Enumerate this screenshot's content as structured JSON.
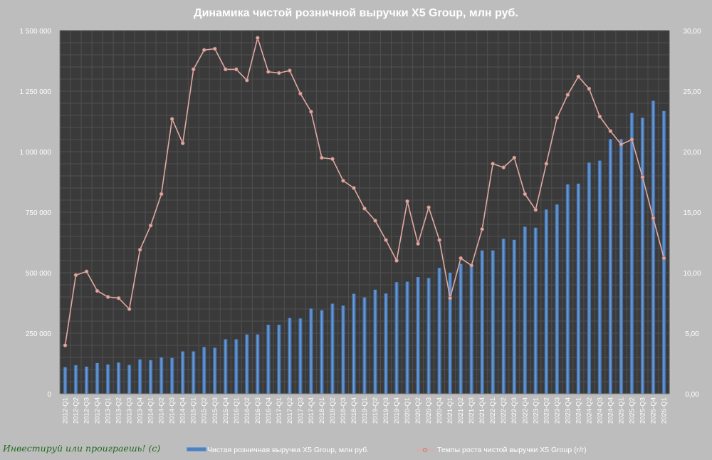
{
  "chart_data": {
    "type": "bar",
    "title": "Динамика чистой розничной выручки X5 Group, млн руб.",
    "categories": [
      "2012-Q1",
      "2012-Q2",
      "2012-Q3",
      "2012-Q4",
      "2013-Q1",
      "2013-Q2",
      "2013-Q3",
      "2013-Q4",
      "2014-Q1",
      "2014-Q2",
      "2014-Q3",
      "2014-Q4",
      "2015-Q1",
      "2015-Q2",
      "2015-Q3",
      "2015-Q4",
      "2016-Q1",
      "2016-Q2",
      "2016-Q3",
      "2016-Q4",
      "2017-Q1",
      "2017-Q2",
      "2017-Q3",
      "2017-Q4",
      "2018-Q1",
      "2018-Q2",
      "2018-Q3",
      "2018-Q4",
      "2019-Q1",
      "2019-Q2",
      "2019-Q3",
      "2019-Q4",
      "2020-Q1",
      "2020-Q2",
      "2020-Q3",
      "2020-Q4",
      "2021-Q1",
      "2021-Q2",
      "2021-Q3",
      "2021-Q4",
      "2022-Q1",
      "2022-Q2",
      "2022-Q3",
      "2022-Q4",
      "2023-Q1",
      "2023-Q2",
      "2023-Q3",
      "2023-Q4",
      "2024-Q1",
      "2024-Q2",
      "2024-Q3",
      "2024-Q4",
      "2025-Q1",
      "2025-Q2",
      "2025-Q3",
      "2025-Q4",
      "2026-Q1"
    ],
    "series": [
      {
        "name": "Чистая розничная выручка X5 Group, млн руб.",
        "type": "bar",
        "axis": "left",
        "color": "#4f81bd",
        "values": [
          110000,
          118000,
          112000,
          127000,
          121000,
          129000,
          119000,
          142000,
          139000,
          150000,
          148000,
          175000,
          175000,
          193000,
          190000,
          225000,
          225000,
          245000,
          245000,
          285000,
          285000,
          313000,
          311000,
          352000,
          345000,
          372000,
          364000,
          413000,
          398000,
          430000,
          414000,
          461000,
          463000,
          482000,
          478000,
          520000,
          500000,
          537000,
          531000,
          592000,
          592000,
          640000,
          636000,
          690000,
          686000,
          761000,
          782000,
          865000,
          868000,
          955000,
          963000,
          1052000,
          1052000,
          1160000,
          1140000,
          1210000,
          1168000
        ]
      },
      {
        "name": "Темпы роста чистой выручки X5 Group (г/г)",
        "type": "line",
        "axis": "right",
        "color": "#e0a9a3",
        "values": [
          4.0,
          9.8,
          10.1,
          8.5,
          8.0,
          7.9,
          7.0,
          11.9,
          13.9,
          16.5,
          22.7,
          20.7,
          26.8,
          28.4,
          28.5,
          26.8,
          26.8,
          25.9,
          29.4,
          26.6,
          26.5,
          26.7,
          24.8,
          23.3,
          19.5,
          19.4,
          17.6,
          17.0,
          15.3,
          14.3,
          12.7,
          11.0,
          15.9,
          12.4,
          15.4,
          12.7,
          7.9,
          11.2,
          10.6,
          13.6,
          19.0,
          18.7,
          19.5,
          16.5,
          15.2,
          19.0,
          22.8,
          24.7,
          26.2,
          25.2,
          22.9,
          21.7,
          20.6,
          21.0,
          17.9,
          14.5,
          11.2
        ]
      }
    ],
    "y_left": {
      "min": 0,
      "max": 1500000,
      "ticks": [
        "0",
        "250 000",
        "500 000",
        "750 000",
        "1 000 000",
        "1 250 000",
        "1 500 000"
      ]
    },
    "y_right": {
      "min": 0,
      "max": 30,
      "ticks": [
        "0,00",
        "5,00",
        "10,00",
        "15,00",
        "20,00",
        "25,00",
        "30,00"
      ]
    },
    "grid": true,
    "legend_position": "bottom",
    "background": "#bdbdbd",
    "plot_background": "#3a3a3a"
  },
  "legend": {
    "bar_label": "Чистая розничная выручка X5 Group, млн руб.",
    "line_label": "Темпы роста чистой выручки X5 Group (г/г)"
  },
  "watermark": "Инвестируй или проиграешь! (с)"
}
